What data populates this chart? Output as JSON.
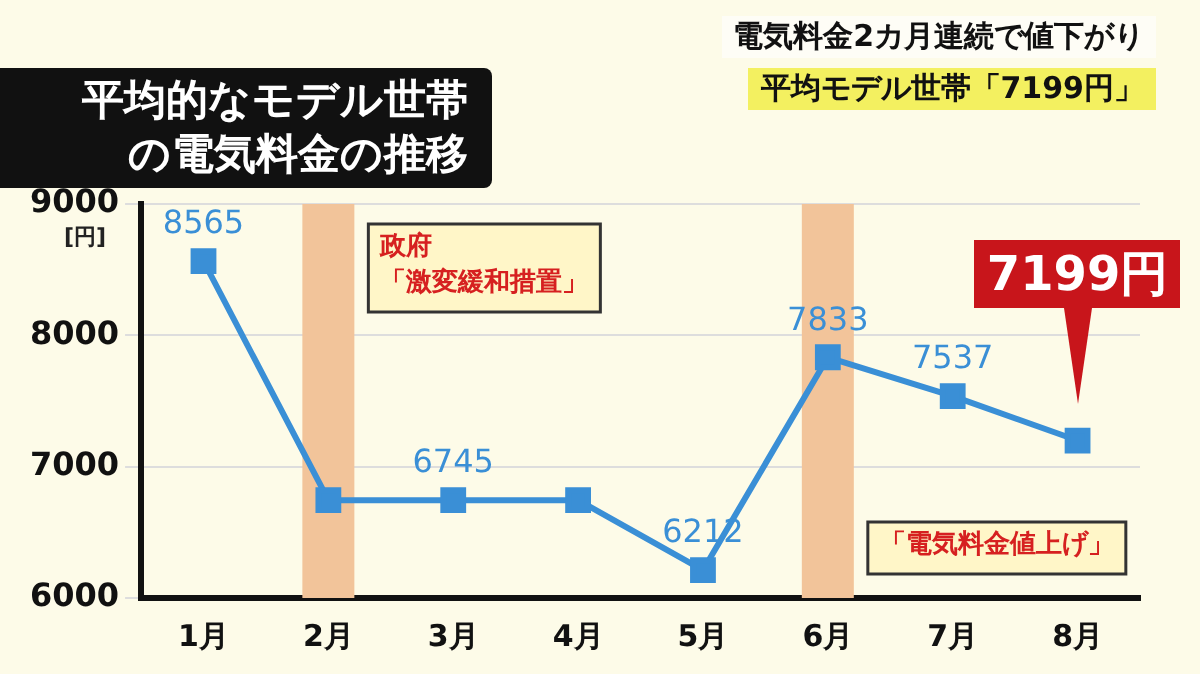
{
  "chart_data": {
    "type": "line",
    "title": "平均的なモデル世帯の電気料金の推移",
    "ylabel": "[円]",
    "annotations": [
      "電気料金2カ月連続で値下がり",
      "平均モデル世帯「7199円」"
    ],
    "categories": [
      "1月",
      "2月",
      "3月",
      "4月",
      "5月",
      "6月",
      "7月",
      "8月"
    ],
    "series": [
      {
        "color": "#3a8fd6",
        "values": [
          8565,
          6745,
          6745,
          6745,
          6212,
          7833,
          7537,
          7199
        ],
        "value_labels": [
          "8565",
          null,
          "6745",
          null,
          "6212",
          "7833",
          "7537",
          "7199円"
        ]
      }
    ],
    "ylim": [
      6000,
      9000
    ],
    "yticks": [
      6000,
      7000,
      8000,
      9000
    ],
    "grid": "y",
    "legend": false,
    "marker": "square",
    "line_style": "solid",
    "bands": [
      {
        "axis": "x",
        "from": "2月",
        "to": "2月",
        "label": "政府「激変緩和措置」",
        "color": "#f2c49a"
      },
      {
        "axis": "x",
        "from": "6月",
        "to": "6月",
        "label": "「電気料金値上げ」",
        "color": "#f2c49a"
      }
    ]
  }
}
